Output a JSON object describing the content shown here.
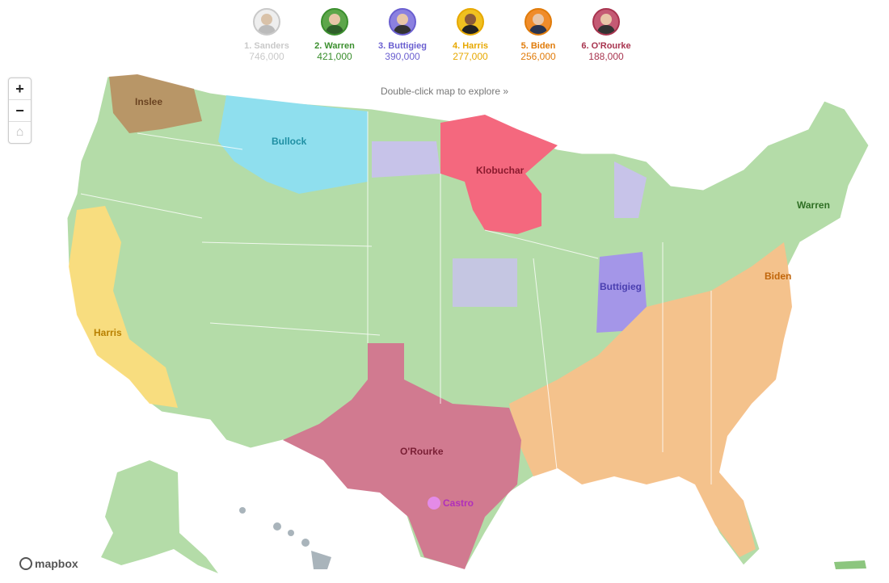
{
  "legend": [
    {
      "rank_name": "1. Sanders",
      "value": "746,000",
      "color": "#c9c9c9"
    },
    {
      "rank_name": "2. Warren",
      "value": "421,000",
      "color": "#3b8f2e"
    },
    {
      "rank_name": "3. Buttigieg",
      "value": "390,000",
      "color": "#6a5fd0"
    },
    {
      "rank_name": "4. Harris",
      "value": "277,000",
      "color": "#e7a800"
    },
    {
      "rank_name": "5. Biden",
      "value": "256,000",
      "color": "#e07b0a"
    },
    {
      "rank_name": "6. O'Rourke",
      "value": "188,000",
      "color": "#a8344f"
    }
  ],
  "hint": "Double-click map to explore »",
  "zoom": {
    "in": "+",
    "out": "−",
    "home": "⌂"
  },
  "map_labels": {
    "inslee": "Inslee",
    "bullock": "Bullock",
    "klobuchar": "Klobuchar",
    "warren": "Warren",
    "buttigieg": "Buttigieg",
    "biden": "Biden",
    "harris": "Harris",
    "orourke": "O'Rourke",
    "castro": "Castro"
  },
  "colors": {
    "inslee": "#9b6a3a",
    "bullock": "#7fd9ea",
    "klobuchar": "#f2637a",
    "warren": "#8cc67e",
    "buttigieg": "#9d8fe6",
    "biden": "#f6b46e",
    "harris": "#ffd966",
    "orourke": "#cf7088",
    "castro": "#e48be8"
  },
  "attribution": "mapbox"
}
